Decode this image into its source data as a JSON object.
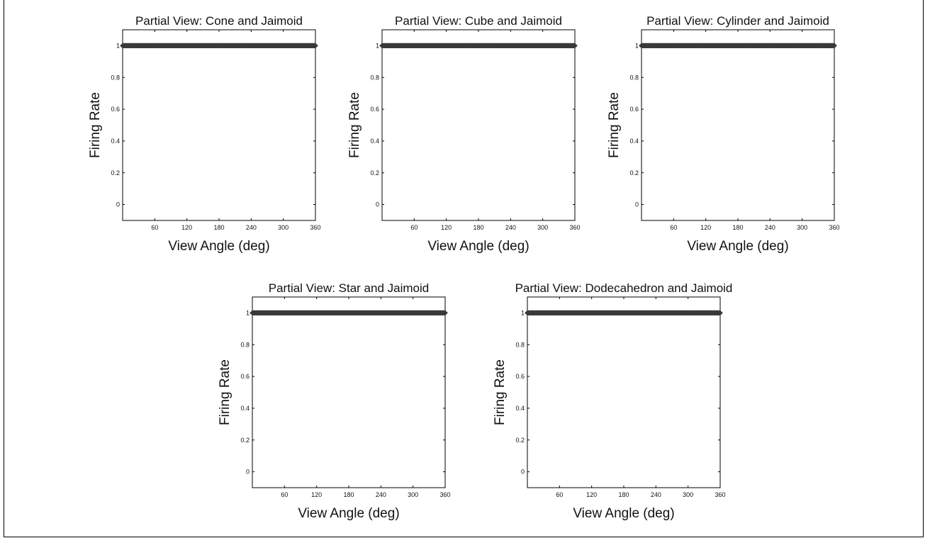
{
  "chart_data": [
    {
      "type": "scatter",
      "title": "Partial View: Cone and Jaimoid",
      "xlabel": "View Angle (deg)",
      "ylabel": "Firing Rate",
      "xlim": [
        0,
        360
      ],
      "ylim": [
        -0.1,
        1.1
      ],
      "xticks": [
        60,
        120,
        180,
        240,
        300,
        360
      ],
      "yticks": [
        0,
        0.2,
        0.4,
        0.6,
        0.8,
        1
      ],
      "series": [
        {
          "x_range": [
            0,
            360
          ],
          "x_step": 1,
          "y": 1
        }
      ],
      "grid": false
    },
    {
      "type": "scatter",
      "title": "Partial View: Cube and Jaimoid",
      "xlabel": "View Angle (deg)",
      "ylabel": "Firing Rate",
      "xlim": [
        0,
        360
      ],
      "ylim": [
        -0.1,
        1.1
      ],
      "xticks": [
        60,
        120,
        180,
        240,
        300,
        360
      ],
      "yticks": [
        0,
        0.2,
        0.4,
        0.6,
        0.8,
        1
      ],
      "series": [
        {
          "x_range": [
            0,
            360
          ],
          "x_step": 1,
          "y": 1
        }
      ],
      "grid": false
    },
    {
      "type": "scatter",
      "title": "Partial View: Cylinder and Jaimoid",
      "xlabel": "View Angle (deg)",
      "ylabel": "Firing Rate",
      "xlim": [
        0,
        360
      ],
      "ylim": [
        -0.1,
        1.1
      ],
      "xticks": [
        60,
        120,
        180,
        240,
        300,
        360
      ],
      "yticks": [
        0,
        0.2,
        0.4,
        0.6,
        0.8,
        1
      ],
      "series": [
        {
          "x_range": [
            0,
            360
          ],
          "x_step": 1,
          "y": 1
        }
      ],
      "grid": false
    },
    {
      "type": "scatter",
      "title": "Partial View: Star and Jaimoid",
      "xlabel": "View Angle (deg)",
      "ylabel": "Firing Rate",
      "xlim": [
        0,
        360
      ],
      "ylim": [
        -0.1,
        1.1
      ],
      "xticks": [
        60,
        120,
        180,
        240,
        300,
        360
      ],
      "yticks": [
        0,
        0.2,
        0.4,
        0.6,
        0.8,
        1
      ],
      "series": [
        {
          "x_range": [
            0,
            360
          ],
          "x_step": 1,
          "y": 1
        }
      ],
      "grid": false
    },
    {
      "type": "scatter",
      "title": "Partial View: Dodecahedron and Jaimoid",
      "xlabel": "View Angle (deg)",
      "ylabel": "Firing Rate",
      "xlim": [
        0,
        360
      ],
      "ylim": [
        -0.1,
        1.1
      ],
      "xticks": [
        60,
        120,
        180,
        240,
        300,
        360
      ],
      "yticks": [
        0,
        0.2,
        0.4,
        0.6,
        0.8,
        1
      ],
      "series": [
        {
          "x_range": [
            0,
            360
          ],
          "x_step": 1,
          "y": 1
        }
      ],
      "grid": false
    }
  ],
  "style": {
    "marker_color": "#3a3a3a",
    "axis_color": "#000000"
  }
}
